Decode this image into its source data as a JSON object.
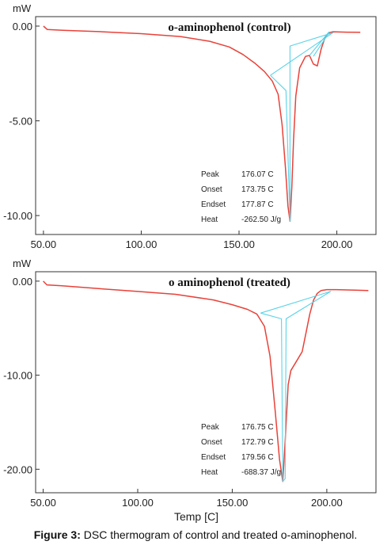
{
  "caption": {
    "label": "Figure 3:",
    "text": " DSC thermogram of control and treated o-aminophenol."
  },
  "chart_data": [
    {
      "type": "line",
      "title": "o-aminophenol (control)",
      "ylabel": "mW",
      "xlabel": "",
      "xlim": [
        46,
        220
      ],
      "ylim": [
        -11.0,
        0.5
      ],
      "xticks": [
        "50.00",
        "100.00",
        "150.00",
        "200.00"
      ],
      "xtick_values": [
        50,
        100,
        150,
        200
      ],
      "yticks": [
        "0.00",
        "-5.00",
        "-10.00"
      ],
      "ytick_values": [
        0,
        -5,
        -10
      ],
      "series": [
        {
          "color": "#e8423a",
          "x": [
            50,
            52,
            60,
            80,
            100,
            120,
            135,
            145,
            152,
            158,
            163,
            167,
            170,
            172,
            173.75,
            175,
            176.07,
            177,
            177.87,
            179,
            181,
            184,
            186,
            188,
            190,
            192,
            194,
            196,
            198,
            205,
            212
          ],
          "y": [
            0.0,
            -0.18,
            -0.22,
            -0.3,
            -0.4,
            -0.55,
            -0.8,
            -1.1,
            -1.5,
            -1.95,
            -2.4,
            -2.9,
            -3.6,
            -5.2,
            -7.5,
            -9.5,
            -10.3,
            -8.5,
            -6.0,
            -3.7,
            -2.2,
            -1.6,
            -1.55,
            -2.0,
            -2.1,
            -1.2,
            -0.6,
            -0.35,
            -0.3,
            -0.32,
            -0.33
          ]
        },
        {
          "color": "#5ad3e8",
          "x": [
            166,
            174,
            176.07,
            176.07,
            198
          ],
          "y": [
            -2.6,
            -3.4,
            -10.3,
            -1.05,
            -0.35
          ]
        },
        {
          "color": "#5ad3e8",
          "x": [
            166,
            198,
            166
          ],
          "y": [
            -2.6,
            -0.35,
            -2.6
          ]
        },
        {
          "color": "#5ad3e8",
          "x": [
            188,
            196
          ],
          "y": [
            -1.6,
            -0.35
          ]
        },
        {
          "color": "#5ad3e8",
          "x": [
            186,
            196
          ],
          "y": [
            -1.55,
            -0.3
          ]
        }
      ],
      "annotations": [
        {
          "label": "Peak",
          "value": "176.07 C"
        },
        {
          "label": "Onset",
          "value": "173.75 C"
        },
        {
          "label": "Endset",
          "value": "177.87 C"
        },
        {
          "label": "Heat",
          "value": "-262.50 J/g"
        }
      ]
    },
    {
      "type": "line",
      "title": "o aminophenol (treated)",
      "ylabel": "mW",
      "xlabel": "Temp  [C]",
      "xlim": [
        46,
        226
      ],
      "ylim": [
        -22.5,
        1.0
      ],
      "xticks": [
        "50.00",
        "100.00",
        "150.00",
        "200.00"
      ],
      "xtick_values": [
        50,
        100,
        150,
        200
      ],
      "yticks": [
        "0.00",
        "-10.00",
        "-20.00"
      ],
      "ytick_values": [
        0,
        -10,
        -20
      ],
      "series": [
        {
          "color": "#e8423a",
          "x": [
            50,
            52,
            60,
            80,
            100,
            120,
            140,
            150,
            158,
            163,
            167,
            170,
            172.79,
            175,
            176.75,
            178,
            179.56,
            181,
            184,
            187,
            189,
            191,
            193,
            195,
            197,
            200,
            205,
            215,
            222
          ],
          "y": [
            0.0,
            -0.4,
            -0.5,
            -0.8,
            -1.1,
            -1.4,
            -2.0,
            -2.5,
            -3.0,
            -3.5,
            -4.8,
            -8.0,
            -14.0,
            -19.0,
            -21.3,
            -17.0,
            -11.0,
            -9.5,
            -8.5,
            -7.5,
            -5.5,
            -3.5,
            -2.0,
            -1.3,
            -1.0,
            -0.9,
            -0.9,
            -0.95,
            -1.0
          ]
        },
        {
          "color": "#5ad3e8",
          "x": [
            165,
            176,
            176.75,
            178,
            178.5,
            202
          ],
          "y": [
            -3.4,
            -4.0,
            -21.3,
            -21.0,
            -4.0,
            -1.1
          ]
        },
        {
          "color": "#5ad3e8",
          "x": [
            165,
            202,
            165
          ],
          "y": [
            -3.4,
            -1.1,
            -3.4
          ]
        }
      ],
      "annotations": [
        {
          "label": "Peak",
          "value": "176.75 C"
        },
        {
          "label": "Onset",
          "value": "172.79 C"
        },
        {
          "label": "Endset",
          "value": "179.56 C"
        },
        {
          "label": "Heat",
          "value": "-688.37 J/g"
        }
      ]
    }
  ]
}
